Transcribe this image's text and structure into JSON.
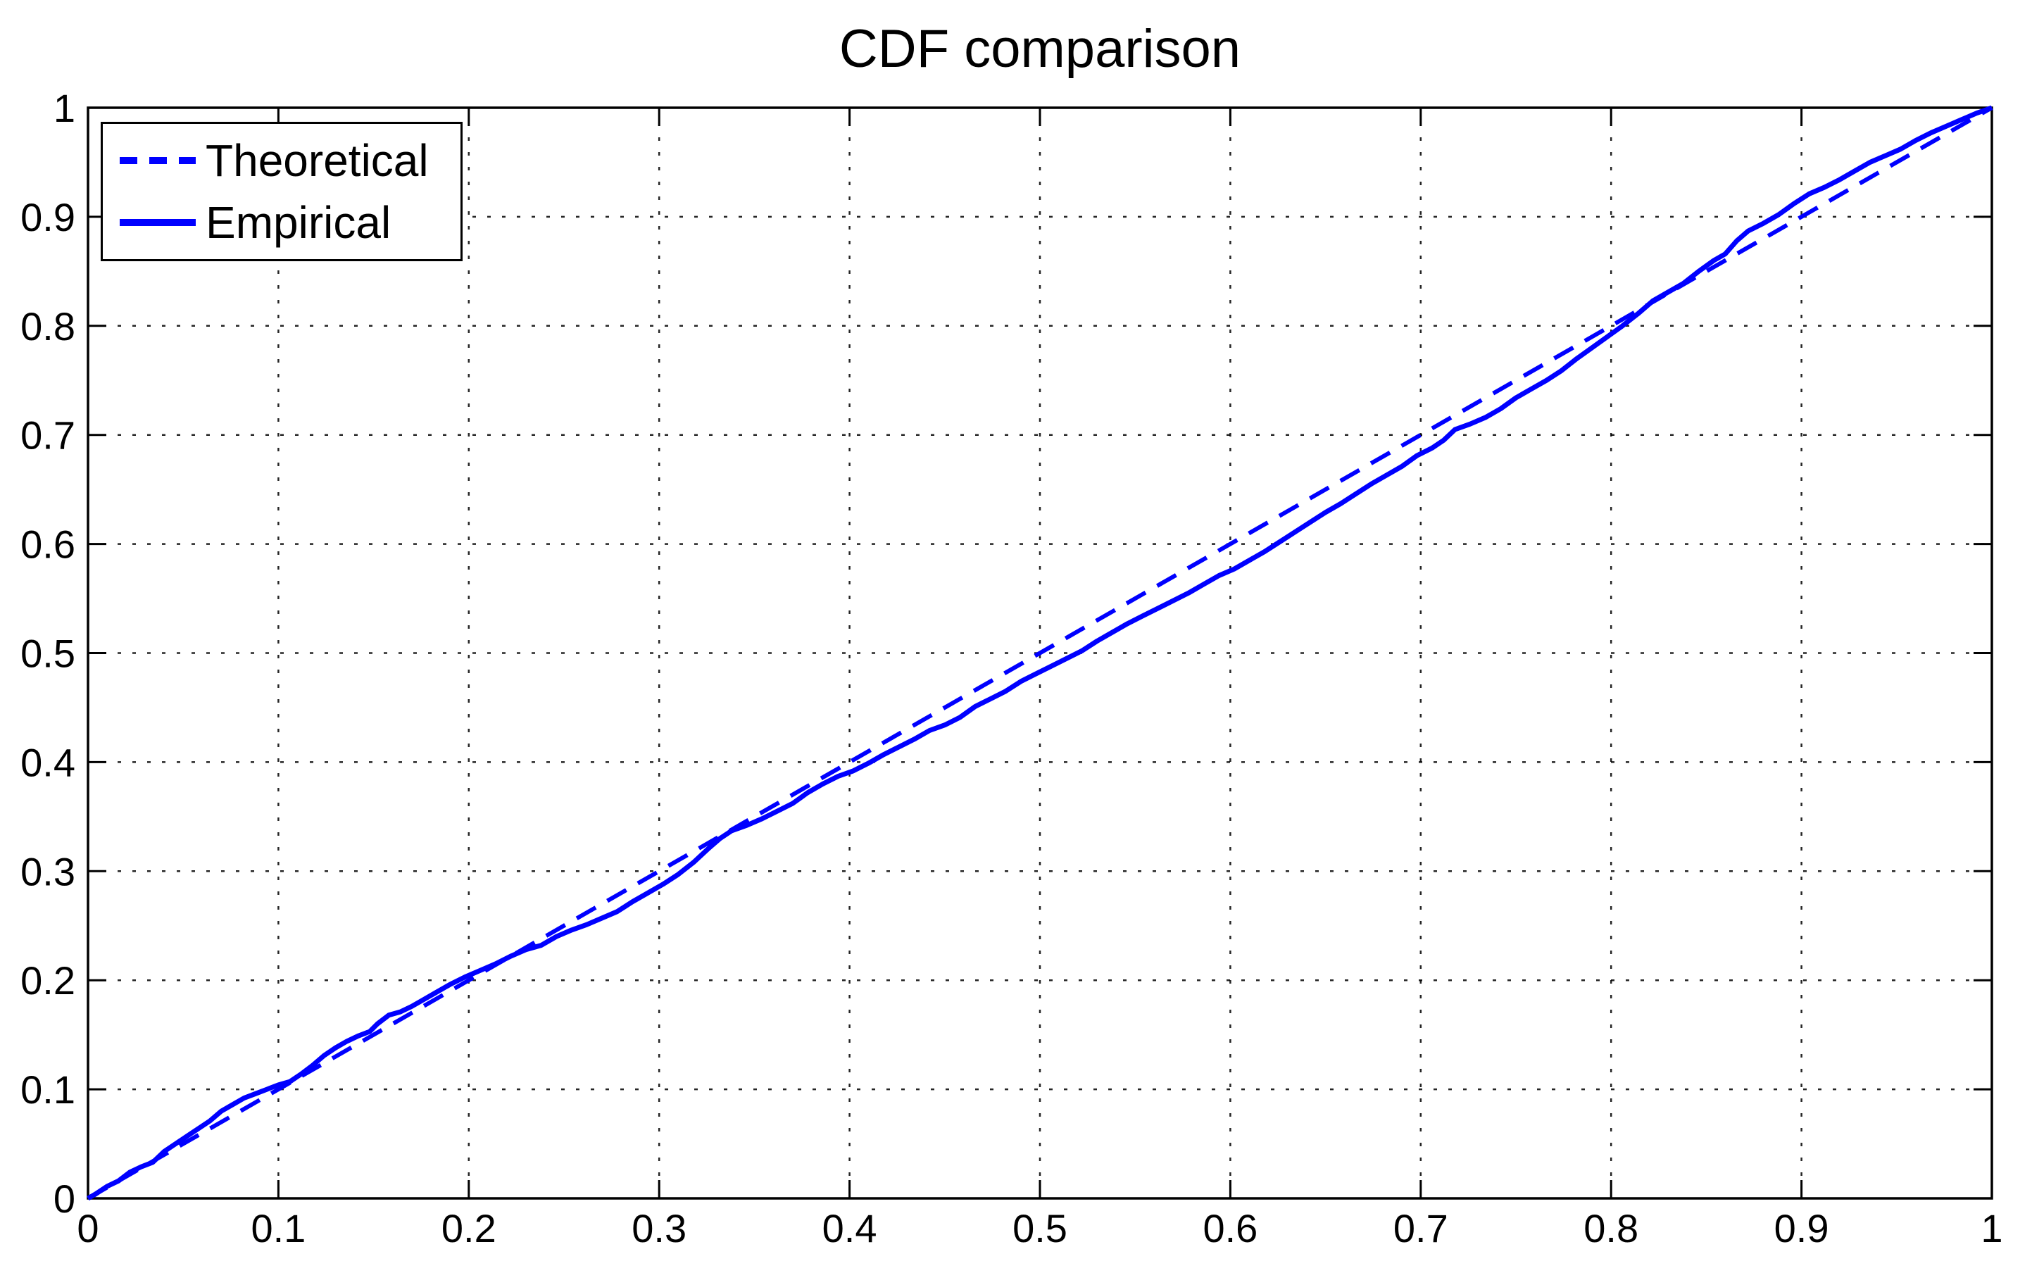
{
  "chart_data": {
    "type": "line",
    "title": "CDF comparison",
    "xlabel": "",
    "ylabel": "",
    "xlim": [
      0,
      1
    ],
    "ylim": [
      0,
      1
    ],
    "x_ticks": [
      "0",
      "0.1",
      "0.2",
      "0.3",
      "0.4",
      "0.5",
      "0.6",
      "0.7",
      "0.8",
      "0.9",
      "1"
    ],
    "y_ticks": [
      "0",
      "0.1",
      "0.2",
      "0.3",
      "0.4",
      "0.5",
      "0.6",
      "0.7",
      "0.8",
      "0.9",
      "1"
    ],
    "grid": true,
    "grid_line_style": "dotted",
    "background_color": "#ffffff",
    "axis_color": "#000000",
    "grid_color": "#000000",
    "line_color": "#0000ff",
    "legend": {
      "position": "top-left",
      "border_color": "#000000",
      "entries": [
        {
          "label": "Theoretical",
          "line_style": "dashed",
          "color": "#0000ff"
        },
        {
          "label": "Empirical",
          "line_style": "solid",
          "color": "#0000ff"
        }
      ]
    },
    "series": [
      {
        "name": "Theoretical",
        "style": "dashed",
        "color": "#0000ff",
        "points": [
          [
            0,
            0
          ],
          [
            1,
            1
          ]
        ]
      },
      {
        "name": "Empirical",
        "style": "solid",
        "color": "#0000ff",
        "points": [
          [
            0.0,
            0.0
          ],
          [
            0.004,
            0.004
          ],
          [
            0.01,
            0.011
          ],
          [
            0.016,
            0.016
          ],
          [
            0.022,
            0.024
          ],
          [
            0.028,
            0.029
          ],
          [
            0.034,
            0.033
          ],
          [
            0.04,
            0.043
          ],
          [
            0.046,
            0.05
          ],
          [
            0.052,
            0.057
          ],
          [
            0.058,
            0.064
          ],
          [
            0.064,
            0.071
          ],
          [
            0.07,
            0.08
          ],
          [
            0.076,
            0.086
          ],
          [
            0.082,
            0.092
          ],
          [
            0.088,
            0.096
          ],
          [
            0.094,
            0.1
          ],
          [
            0.1,
            0.104
          ],
          [
            0.106,
            0.107
          ],
          [
            0.112,
            0.114
          ],
          [
            0.118,
            0.122
          ],
          [
            0.124,
            0.131
          ],
          [
            0.13,
            0.138
          ],
          [
            0.136,
            0.144
          ],
          [
            0.142,
            0.149
          ],
          [
            0.148,
            0.153
          ],
          [
            0.152,
            0.16
          ],
          [
            0.158,
            0.168
          ],
          [
            0.164,
            0.171
          ],
          [
            0.17,
            0.176
          ],
          [
            0.176,
            0.182
          ],
          [
            0.182,
            0.188
          ],
          [
            0.19,
            0.196
          ],
          [
            0.198,
            0.203
          ],
          [
            0.206,
            0.209
          ],
          [
            0.214,
            0.215
          ],
          [
            0.222,
            0.222
          ],
          [
            0.23,
            0.228
          ],
          [
            0.238,
            0.232
          ],
          [
            0.246,
            0.24
          ],
          [
            0.254,
            0.246
          ],
          [
            0.262,
            0.251
          ],
          [
            0.27,
            0.257
          ],
          [
            0.278,
            0.263
          ],
          [
            0.286,
            0.272
          ],
          [
            0.294,
            0.28
          ],
          [
            0.302,
            0.288
          ],
          [
            0.31,
            0.297
          ],
          [
            0.318,
            0.308
          ],
          [
            0.326,
            0.321
          ],
          [
            0.332,
            0.33
          ],
          [
            0.338,
            0.337
          ],
          [
            0.346,
            0.342
          ],
          [
            0.354,
            0.348
          ],
          [
            0.362,
            0.355
          ],
          [
            0.37,
            0.362
          ],
          [
            0.378,
            0.372
          ],
          [
            0.386,
            0.38
          ],
          [
            0.394,
            0.387
          ],
          [
            0.402,
            0.392
          ],
          [
            0.41,
            0.399
          ],
          [
            0.418,
            0.407
          ],
          [
            0.426,
            0.414
          ],
          [
            0.434,
            0.421
          ],
          [
            0.442,
            0.429
          ],
          [
            0.45,
            0.434
          ],
          [
            0.458,
            0.441
          ],
          [
            0.466,
            0.451
          ],
          [
            0.474,
            0.458
          ],
          [
            0.482,
            0.465
          ],
          [
            0.49,
            0.474
          ],
          [
            0.498,
            0.481
          ],
          [
            0.506,
            0.488
          ],
          [
            0.514,
            0.495
          ],
          [
            0.522,
            0.502
          ],
          [
            0.53,
            0.511
          ],
          [
            0.538,
            0.519
          ],
          [
            0.546,
            0.527
          ],
          [
            0.554,
            0.534
          ],
          [
            0.562,
            0.541
          ],
          [
            0.57,
            0.548
          ],
          [
            0.578,
            0.555
          ],
          [
            0.586,
            0.563
          ],
          [
            0.594,
            0.571
          ],
          [
            0.602,
            0.577
          ],
          [
            0.61,
            0.585
          ],
          [
            0.618,
            0.593
          ],
          [
            0.626,
            0.602
          ],
          [
            0.634,
            0.611
          ],
          [
            0.642,
            0.62
          ],
          [
            0.65,
            0.629
          ],
          [
            0.658,
            0.637
          ],
          [
            0.666,
            0.646
          ],
          [
            0.674,
            0.655
          ],
          [
            0.682,
            0.663
          ],
          [
            0.69,
            0.671
          ],
          [
            0.698,
            0.681
          ],
          [
            0.706,
            0.688
          ],
          [
            0.712,
            0.695
          ],
          [
            0.718,
            0.705
          ],
          [
            0.726,
            0.71
          ],
          [
            0.734,
            0.716
          ],
          [
            0.742,
            0.724
          ],
          [
            0.75,
            0.734
          ],
          [
            0.758,
            0.742
          ],
          [
            0.766,
            0.75
          ],
          [
            0.774,
            0.759
          ],
          [
            0.782,
            0.77
          ],
          [
            0.79,
            0.78
          ],
          [
            0.798,
            0.79
          ],
          [
            0.806,
            0.8
          ],
          [
            0.814,
            0.811
          ],
          [
            0.822,
            0.823
          ],
          [
            0.83,
            0.831
          ],
          [
            0.838,
            0.839
          ],
          [
            0.846,
            0.85
          ],
          [
            0.854,
            0.86
          ],
          [
            0.86,
            0.866
          ],
          [
            0.866,
            0.878
          ],
          [
            0.872,
            0.887
          ],
          [
            0.88,
            0.894
          ],
          [
            0.888,
            0.902
          ],
          [
            0.896,
            0.912
          ],
          [
            0.904,
            0.921
          ],
          [
            0.912,
            0.927
          ],
          [
            0.92,
            0.934
          ],
          [
            0.928,
            0.942
          ],
          [
            0.936,
            0.95
          ],
          [
            0.944,
            0.956
          ],
          [
            0.952,
            0.962
          ],
          [
            0.96,
            0.97
          ],
          [
            0.968,
            0.977
          ],
          [
            0.976,
            0.983
          ],
          [
            0.984,
            0.989
          ],
          [
            0.992,
            0.995
          ],
          [
            1.0,
            1.0
          ]
        ]
      }
    ]
  }
}
